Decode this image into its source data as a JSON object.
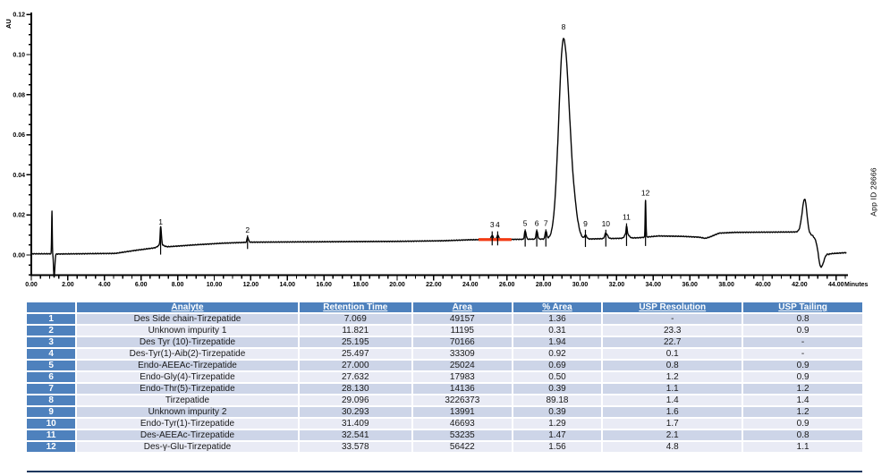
{
  "chart_data": {
    "type": "line",
    "title": "",
    "xlabel": "Minutes",
    "ylabel": "AU",
    "annotation": "App ID 28666",
    "trace_color": "#050505",
    "x_axis": {
      "min": 0,
      "max": 44.6,
      "major_step": 2,
      "minor_step": 0.5,
      "labels": [
        "0.00",
        "2.00",
        "4.00",
        "6.00",
        "8.00",
        "10.00",
        "12.00",
        "14.00",
        "16.00",
        "18.00",
        "20.00",
        "22.00",
        "24.00",
        "26.00",
        "28.00",
        "30.00",
        "32.00",
        "34.00",
        "36.00",
        "38.00",
        "40.00",
        "42.00",
        "44.00"
      ]
    },
    "y_axis": {
      "min": -0.0105,
      "max": 0.1225,
      "major_step": 0.02,
      "minor_step": 0.005,
      "labels": [
        "0.00",
        "0.02",
        "0.04",
        "0.06",
        "0.08",
        "0.10",
        "0.12"
      ]
    },
    "red_segment": {
      "t_start": 24.45,
      "t_end": 26.25,
      "au": 0.0077,
      "color": "#F23B14"
    },
    "baseline_anchors": [
      [
        0,
        0.0006
      ],
      [
        1.0,
        0.0006
      ],
      [
        1.45,
        0.0005
      ],
      [
        4.6,
        0.0008
      ],
      [
        5.6,
        0.0022
      ],
      [
        6.6,
        0.0034
      ],
      [
        7.6,
        0.0042
      ],
      [
        9.0,
        0.0051
      ],
      [
        10.5,
        0.0059
      ],
      [
        12.0,
        0.0064
      ],
      [
        16.0,
        0.0066
      ],
      [
        20.0,
        0.0068
      ],
      [
        22.5,
        0.0071
      ],
      [
        24.0,
        0.0076
      ],
      [
        26.5,
        0.0078
      ],
      [
        28.4,
        0.008
      ],
      [
        29.8,
        0.008
      ],
      [
        30.15,
        0.0079
      ],
      [
        31.0,
        0.0081
      ],
      [
        32.1,
        0.0083
      ],
      [
        33.2,
        0.0086
      ],
      [
        34.3,
        0.0095
      ],
      [
        35.6,
        0.0093
      ],
      [
        36.5,
        0.0089
      ],
      [
        36.85,
        0.0083
      ],
      [
        37.1,
        0.009
      ],
      [
        37.6,
        0.0109
      ],
      [
        38.5,
        0.0113
      ],
      [
        41.9,
        0.0115
      ],
      [
        42.7,
        0.0098
      ],
      [
        43.6,
        0.0006
      ],
      [
        44.6,
        0.0012
      ]
    ],
    "peak_gaussians": [
      {
        "c": 1.13,
        "h": 0.0212,
        "sl": 0.018,
        "sr": 0.016
      },
      {
        "c": 1.245,
        "h": -0.0118,
        "sl": 0.028,
        "sr": 0.038
      },
      {
        "c": 7.069,
        "h": 0.0089,
        "sl": 0.028,
        "sr": 0.042
      },
      {
        "c": 7.069,
        "h": 0.0014,
        "sl": 0.14,
        "sr": 0.16
      },
      {
        "c": 11.821,
        "h": 0.0026,
        "sl": 0.032,
        "sr": 0.05
      },
      {
        "c": 25.195,
        "h": 0.0021,
        "sl": 0.055,
        "sr": 0.05
      },
      {
        "c": 25.497,
        "h": 0.0021,
        "sl": 0.05,
        "sr": 0.06
      },
      {
        "c": 27.0,
        "h": 0.0041,
        "sl": 0.04,
        "sr": 0.05
      },
      {
        "c": 27.632,
        "h": 0.0041,
        "sl": 0.04,
        "sr": 0.05
      },
      {
        "c": 28.13,
        "h": 0.0039,
        "sl": 0.04,
        "sr": 0.05
      },
      {
        "c": 29.096,
        "h": 0.1,
        "sl": 0.26,
        "sr": 0.34
      },
      {
        "c": 29.75,
        "h": 0.003,
        "sl": 0.1,
        "sr": 0.16
      },
      {
        "c": 30.293,
        "h": 0.0018,
        "sl": 0.05,
        "sr": 0.07
      },
      {
        "c": 31.409,
        "h": 0.0027,
        "sl": 0.06,
        "sr": 0.09
      },
      {
        "c": 32.541,
        "h": 0.0026,
        "sl": 0.09,
        "sr": 0.11
      },
      {
        "c": 32.541,
        "h": 0.0036,
        "sl": 0.022,
        "sr": 0.028
      },
      {
        "c": 33.578,
        "h": 0.0186,
        "sl": 0.02,
        "sr": 0.024
      },
      {
        "c": 42.28,
        "h": 0.0172,
        "sl": 0.14,
        "sr": 0.12
      },
      {
        "c": 43.15,
        "h": -0.011,
        "sl": 0.12,
        "sr": 0.17
      }
    ],
    "peaks": [
      {
        "label": "1",
        "rt": 7.069,
        "tick": [
          0.0002,
          0.0135
        ],
        "label_au": 0.0165
      },
      {
        "label": "2",
        "rt": 11.821,
        "tick": [
          0.003,
          0.0098
        ],
        "label_au": 0.0126
      },
      {
        "label": "3",
        "rt": 25.195,
        "tick": [
          0.0048,
          0.0118
        ],
        "label_au": 0.0152
      },
      {
        "label": "4",
        "rt": 25.497,
        "tick": [
          0.0048,
          0.0118
        ],
        "label_au": 0.0152
      },
      {
        "label": "5",
        "rt": 27.0,
        "tick": [
          0.0042,
          0.0128
        ],
        "label_au": 0.0158
      },
      {
        "label": "6",
        "rt": 27.632,
        "tick": [
          0.0042,
          0.0128
        ],
        "label_au": 0.0158
      },
      {
        "label": "7",
        "rt": 28.13,
        "tick": [
          0.0042,
          0.0128
        ],
        "label_au": 0.0158
      },
      {
        "label": "8",
        "rt": 29.096,
        "tick": null,
        "label_au": 0.1138
      },
      {
        "label": "9",
        "rt": 30.293,
        "tick": [
          0.004,
          0.0126
        ],
        "label_au": 0.0156
      },
      {
        "label": "10",
        "rt": 31.409,
        "tick": [
          0.0042,
          0.0126
        ],
        "label_au": 0.0156
      },
      {
        "label": "11",
        "rt": 32.541,
        "tick": [
          0.0045,
          0.0158
        ],
        "label_au": 0.019
      },
      {
        "label": "12",
        "rt": 33.578,
        "tick": [
          0.0045,
          0.0272
        ],
        "label_au": 0.031
      }
    ]
  },
  "table": {
    "columns": [
      "",
      "Analyte",
      "Retention Time",
      "Area",
      "% Area",
      "USP Resolution",
      "USP Tailing"
    ],
    "rows": [
      {
        "num": "1",
        "cells": [
          "Des Side chain-Tirzepatide",
          "7.069",
          "49157",
          "1.36",
          "-",
          "0.8"
        ]
      },
      {
        "num": "2",
        "cells": [
          "Unknown impurity 1",
          "11.821",
          "11195",
          "0.31",
          "23.3",
          "0.9"
        ]
      },
      {
        "num": "3",
        "cells": [
          "Des Tyr (10)-Tirzepatide",
          "25.195",
          "70166",
          "1.94",
          "22.7",
          "-"
        ]
      },
      {
        "num": "4",
        "cells": [
          "Des-Tyr(1)-Aib(2)-Tirzepatide",
          "25.497",
          "33309",
          "0.92",
          "0.1",
          "-"
        ]
      },
      {
        "num": "5",
        "cells": [
          "Endo-AEEAc-Tirzepatide",
          "27.000",
          "25024",
          "0.69",
          "0.8",
          "0.9"
        ]
      },
      {
        "num": "6",
        "cells": [
          "Endo-Gly(4)-Tirzepatide",
          "27.632",
          "17983",
          "0.50",
          "1.2",
          "0.9"
        ]
      },
      {
        "num": "7",
        "cells": [
          "Endo-Thr(5)-Tirzepatide",
          "28.130",
          "14136",
          "0.39",
          "1.1",
          "1.2"
        ]
      },
      {
        "num": "8",
        "cells": [
          "Tirzepatide",
          "29.096",
          "3226373",
          "89.18",
          "1.4",
          "1.4"
        ]
      },
      {
        "num": "9",
        "cells": [
          "Unknown impurity 2",
          "30.293",
          "13991",
          "0.39",
          "1.6",
          "1.2"
        ]
      },
      {
        "num": "10",
        "cells": [
          "Endo-Tyr(1)-Tirzepatide",
          "31.409",
          "46693",
          "1.29",
          "1.7",
          "0.9"
        ]
      },
      {
        "num": "11",
        "cells": [
          "Des-AEEAc-Tirzepatide",
          "32.541",
          "53235",
          "1.47",
          "2.1",
          "0.8"
        ]
      },
      {
        "num": "12",
        "cells": [
          "Des-γ-Glu-Tirzepatide",
          "33.578",
          "56422",
          "1.56",
          "4.8",
          "1.1"
        ]
      }
    ]
  }
}
